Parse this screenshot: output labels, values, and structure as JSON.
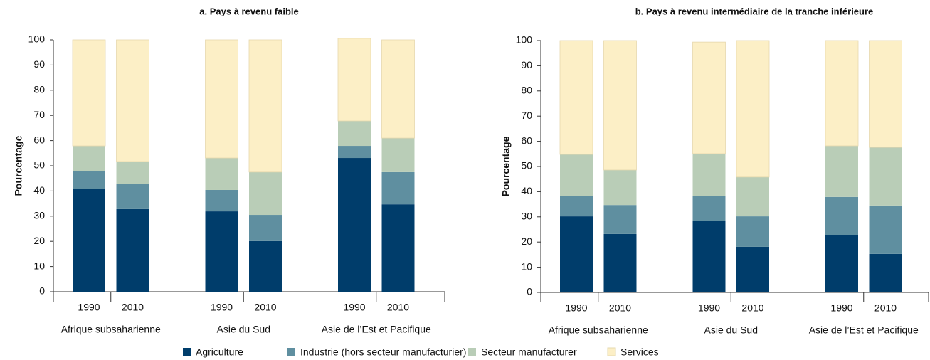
{
  "chart_data": [
    {
      "type": "bar",
      "stacked": true,
      "title": "a.  Pays à revenu faible",
      "ylabel": "Pourcentage",
      "categories": [
        "1990",
        "2010",
        "1990",
        "2010",
        "1990",
        "2010"
      ],
      "groups": [
        "Afrique subsaharienne",
        "Asie du Sud",
        "Asie de l’Est et Pacifique"
      ],
      "ylim": [
        0,
        100
      ],
      "yticks": [
        0,
        10,
        20,
        30,
        40,
        50,
        60,
        70,
        80,
        90,
        100
      ],
      "series": [
        {
          "values": [
            40.7,
            32.8,
            31.9,
            20.1,
            53.1,
            34.7
          ]
        },
        {
          "values": [
            7.3,
            10.1,
            8.5,
            10.4,
            4.8,
            12.8
          ]
        },
        {
          "values": [
            9.9,
            8.8,
            12.7,
            17.0,
            9.9,
            13.5
          ]
        },
        {
          "values": [
            42.1,
            48.3,
            46.9,
            52.5,
            32.8,
            39.0
          ]
        }
      ]
    },
    {
      "type": "bar",
      "stacked": true,
      "title": "b.  Pays à revenu intermédiaire de la tranche inférieure",
      "ylabel": "Pourcentage",
      "categories": [
        "1990",
        "2010",
        "1990",
        "2010",
        "1990",
        "2010"
      ],
      "groups": [
        "Afrique subsaharienne",
        "Asie du Sud",
        "Asie de l’Est et Pacifique"
      ],
      "ylim": [
        0,
        100
      ],
      "yticks": [
        0,
        10,
        20,
        30,
        40,
        50,
        60,
        70,
        80,
        90,
        100
      ],
      "series": [
        {
          "values": [
            30.2,
            23.2,
            28.5,
            18.1,
            22.6,
            15.3
          ]
        },
        {
          "values": [
            8.2,
            11.5,
            9.9,
            12.1,
            15.3,
            19.2
          ]
        },
        {
          "values": [
            16.4,
            13.9,
            16.7,
            15.6,
            20.3,
            23.1
          ]
        },
        {
          "values": [
            45.2,
            51.4,
            44.3,
            54.2,
            41.8,
            42.4
          ]
        }
      ]
    }
  ],
  "legend": [
    {
      "name": "Agriculture",
      "color": "#003d6b"
    },
    {
      "name": "Industrie (hors secteur manufacturier)",
      "color": "#5f8fa0"
    },
    {
      "name": "Secteur manufacturer",
      "color": "#b9cdb7"
    },
    {
      "name": "Services",
      "color": "#fcefc6"
    }
  ]
}
